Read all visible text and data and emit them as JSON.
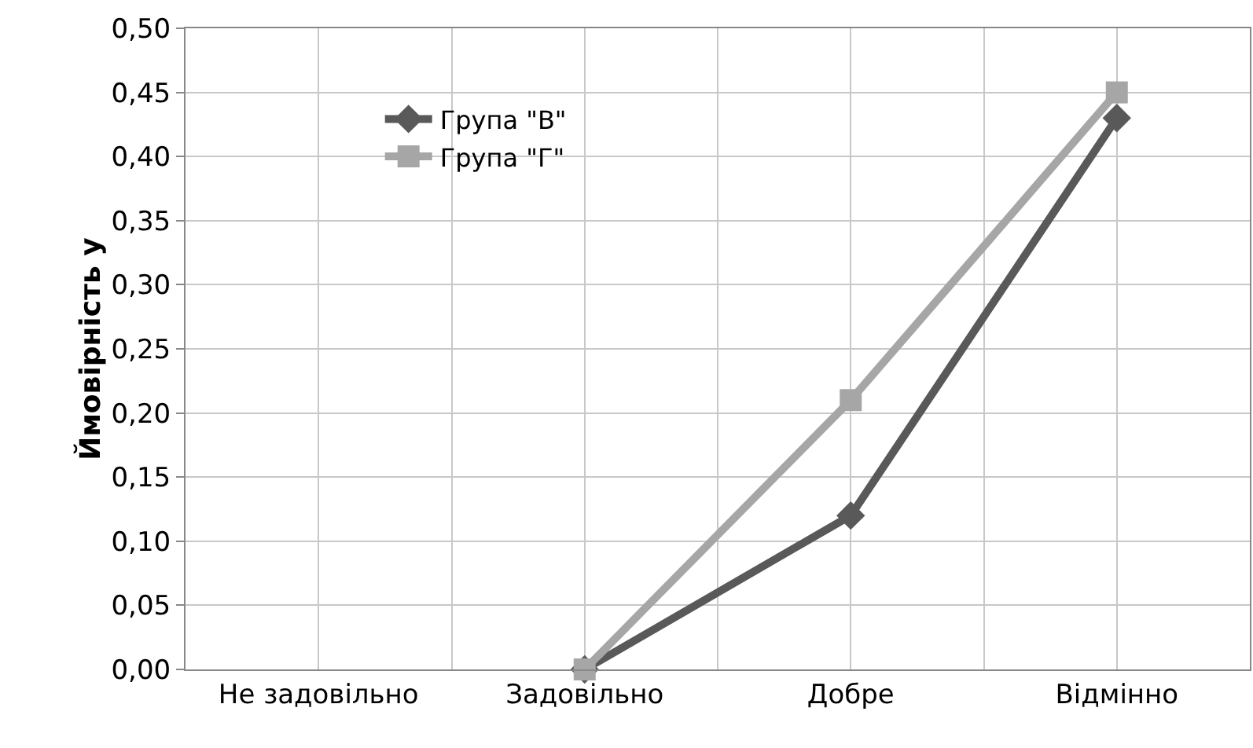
{
  "chart_data": {
    "type": "line",
    "ylabel": "Ймовірність у",
    "categories": [
      "Не задовільно",
      "Задовільно",
      "Добре",
      "Відмінно"
    ],
    "series": [
      {
        "name": "Група \"В\"",
        "color": "#595959",
        "marker": "diamond",
        "values": [
          null,
          0.0,
          0.12,
          0.43
        ]
      },
      {
        "name": "Група \"Г\"",
        "color": "#a6a6a6",
        "marker": "square",
        "values": [
          null,
          0.0,
          0.21,
          0.45
        ]
      }
    ],
    "ylim": [
      0,
      0.5
    ],
    "yticks": [
      {
        "value": 0,
        "label": "0,00"
      },
      {
        "value": 0.05,
        "label": "0,05"
      },
      {
        "value": 0.1,
        "label": "0,10"
      },
      {
        "value": 0.15,
        "label": "0,15"
      },
      {
        "value": 0.2,
        "label": "0,20"
      },
      {
        "value": 0.25,
        "label": "0,25"
      },
      {
        "value": 0.3,
        "label": "0,30"
      },
      {
        "value": 0.35,
        "label": "0,35"
      },
      {
        "value": 0.4,
        "label": "0,40"
      },
      {
        "value": 0.45,
        "label": "0,45"
      },
      {
        "value": 0.5,
        "label": "0,50"
      }
    ],
    "grid": true,
    "legend": "top left",
    "line_style": "solid"
  }
}
